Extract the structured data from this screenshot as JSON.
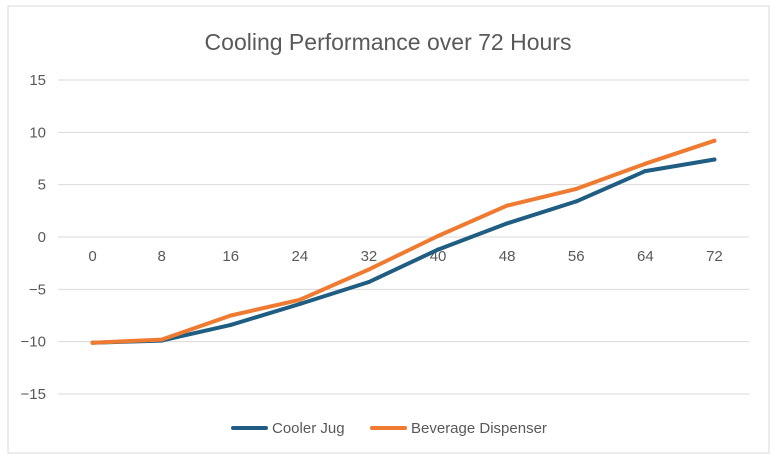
{
  "chart_data": {
    "type": "line",
    "title": "Cooling Performance over 72 Hours",
    "xlabel": "",
    "ylabel": "",
    "x": [
      0,
      8,
      16,
      24,
      32,
      40,
      48,
      56,
      64,
      72
    ],
    "ylim": [
      -15,
      15
    ],
    "yticks": [
      15,
      10,
      5,
      0,
      -5,
      -10,
      -15
    ],
    "grid": true,
    "legend_position": "bottom",
    "series": [
      {
        "name": "Cooler Jug",
        "color": "#1f5e82",
        "values": [
          -10.1,
          -9.9,
          -8.4,
          -6.4,
          -4.3,
          -1.2,
          1.3,
          3.4,
          6.3,
          7.4
        ]
      },
      {
        "name": "Beverage Dispenser",
        "color": "#ef7a32",
        "values": [
          -10.1,
          -9.8,
          -7.5,
          -6.0,
          -3.1,
          0.1,
          3.0,
          4.6,
          7.0,
          9.2
        ]
      }
    ]
  }
}
